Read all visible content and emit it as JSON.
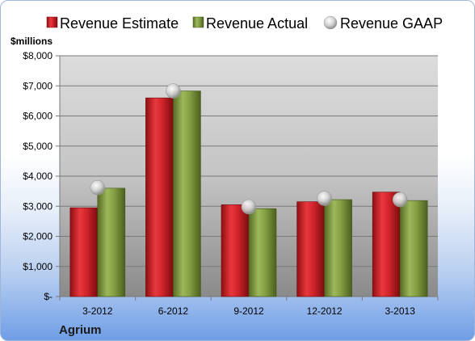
{
  "chart_data": {
    "type": "bar",
    "title": "",
    "company": "Agrium",
    "unit_label": "$millions",
    "categories": [
      "3-2012",
      "6-2012",
      "9-2012",
      "12-2012",
      "3-2013"
    ],
    "series": [
      {
        "name": "Revenue Estimate",
        "kind": "bar",
        "color": "#cc1f24",
        "values": [
          2950,
          6600,
          3050,
          3150,
          3470
        ]
      },
      {
        "name": "Revenue Actual",
        "kind": "bar",
        "color": "#7f9c3c",
        "values": [
          3600,
          6830,
          2920,
          3220,
          3190
        ]
      },
      {
        "name": "Revenue GAAP",
        "kind": "marker",
        "color": "#bfbfbf",
        "values": [
          3620,
          6830,
          2980,
          3260,
          3220
        ]
      }
    ],
    "ylim": [
      0,
      8000
    ],
    "yticks": [
      0,
      1000,
      2000,
      3000,
      4000,
      5000,
      6000,
      7000,
      8000
    ],
    "ytick_labels": [
      "$-",
      "$1,000",
      "$2,000",
      "$3,000",
      "$4,000",
      "$5,000",
      "$6,000",
      "$7,000",
      "$8,000"
    ],
    "grid": true,
    "legend_position": "top"
  }
}
